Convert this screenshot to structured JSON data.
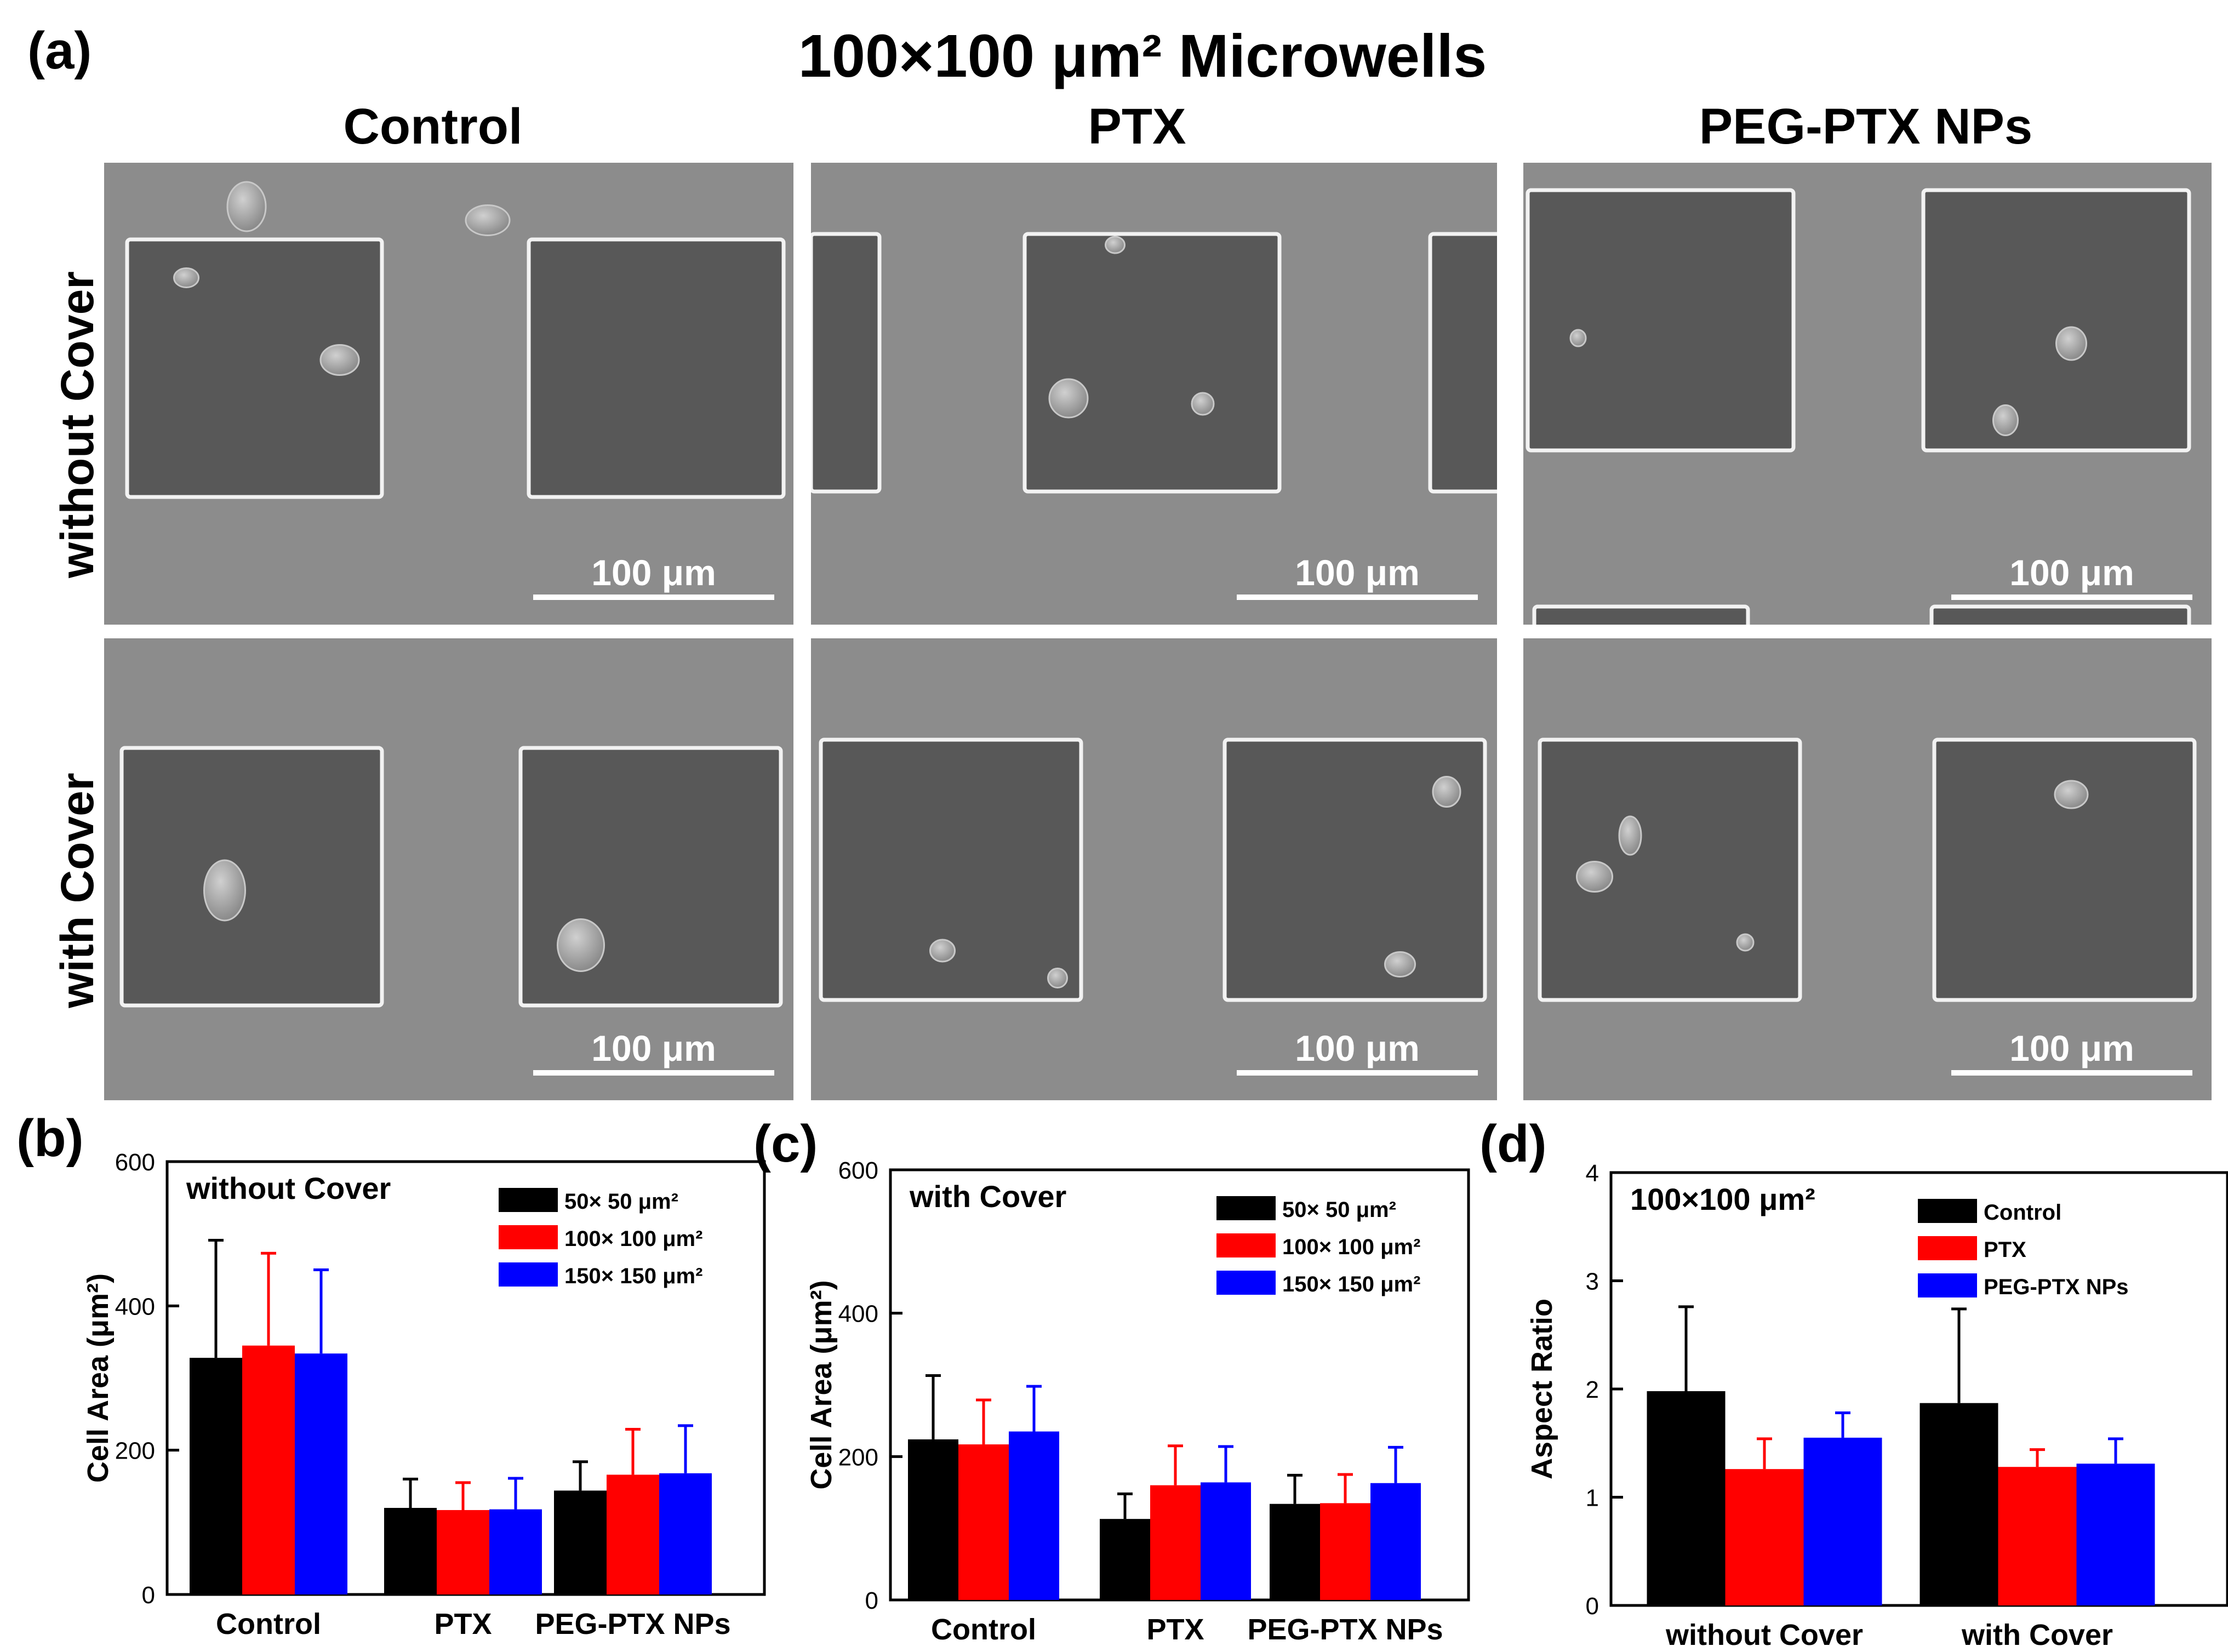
{
  "figure": {
    "panel_a_label": "(a)",
    "main_title": "100×100 μm² Microwells",
    "columns": [
      "Control",
      "PTX",
      "PEG-PTX NPs"
    ],
    "rows": [
      "without Cover",
      "with Cover"
    ],
    "scale_bar_label": "100 μm",
    "micrograph_colors": {
      "substrate": "#8c8c8c",
      "well": "#585858",
      "rim": "#f2f2f2",
      "cell": "#a9a9a9"
    }
  },
  "chart_data": [
    {
      "panel": "(b)",
      "type": "bar",
      "title": "without Cover",
      "categories": [
        "Control",
        "PTX",
        "PEG-PTX NPs"
      ],
      "ylabel": "Cell Area (μm²)",
      "ylim": [
        0,
        600
      ],
      "yticks": [
        0,
        200,
        400,
        600
      ],
      "series": [
        {
          "name": "50×  50 μm²",
          "color": "#000000",
          "values": [
            328,
            120,
            144
          ],
          "errors": [
            163,
            40,
            40
          ]
        },
        {
          "name": "100×  100 μm²",
          "color": "#ff0000",
          "values": [
            345,
            117,
            166
          ],
          "errors": [
            128,
            38,
            63
          ]
        },
        {
          "name": "150×  150 μm²",
          "color": "#0000ff",
          "values": [
            334,
            118,
            168
          ],
          "errors": [
            116,
            43,
            66
          ]
        }
      ],
      "legend_position": "top-right"
    },
    {
      "panel": "(c)",
      "type": "bar",
      "title": "with Cover",
      "categories": [
        "Control",
        "PTX",
        "PEG-PTX NPs"
      ],
      "ylabel": "Cell Area (μm²)",
      "ylim": [
        0,
        600
      ],
      "yticks": [
        0,
        200,
        400,
        600
      ],
      "series": [
        {
          "name": "50×  50 μm²",
          "color": "#000000",
          "values": [
            224,
            113,
            134
          ],
          "errors": [
            89,
            35,
            40
          ]
        },
        {
          "name": "100×  100 μm²",
          "color": "#ff0000",
          "values": [
            217,
            160,
            135
          ],
          "errors": [
            62,
            55,
            40
          ]
        },
        {
          "name": "150×  150 μm²",
          "color": "#0000ff",
          "values": [
            235,
            164,
            163
          ],
          "errors": [
            63,
            50,
            50
          ]
        }
      ],
      "legend_position": "top-right"
    },
    {
      "panel": "(d)",
      "type": "bar",
      "title": "100×100 μm²",
      "categories": [
        "without Cover",
        "with Cover"
      ],
      "ylabel": "Aspect Ratio",
      "ylim": [
        0,
        4
      ],
      "yticks": [
        0,
        1,
        2,
        3,
        4
      ],
      "series": [
        {
          "name": "Control",
          "color": "#000000",
          "values": [
            1.98,
            1.87
          ],
          "errors": [
            0.78,
            0.87
          ]
        },
        {
          "name": "PTX",
          "color": "#ff0000",
          "values": [
            1.26,
            1.28
          ],
          "errors": [
            0.28,
            0.16
          ]
        },
        {
          "name": "PEG-PTX NPs",
          "color": "#0000ff",
          "values": [
            1.55,
            1.31
          ],
          "errors": [
            0.23,
            0.23
          ]
        }
      ],
      "legend_position": "top-right"
    }
  ]
}
